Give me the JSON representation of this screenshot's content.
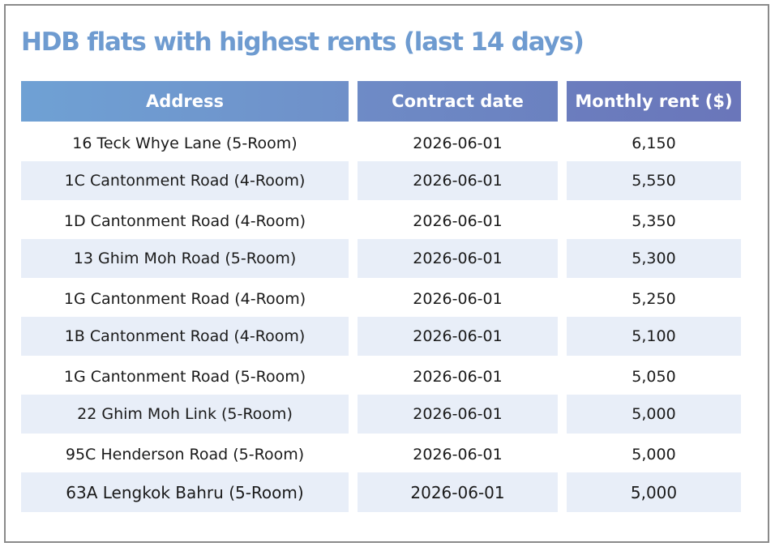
{
  "title": "HDB flats with highest rents (last 14 days)",
  "columns": [
    "Address",
    "Contract date",
    "Monthly rent ($)"
  ],
  "rows": [
    {
      "address": "16 Teck Whye Lane (5-Room)",
      "date": "2026-06-01",
      "rent": "6,150"
    },
    {
      "address": "1C Cantonment Road (4-Room)",
      "date": "2026-06-01",
      "rent": "5,550"
    },
    {
      "address": "1D Cantonment Road (4-Room)",
      "date": "2026-06-01",
      "rent": "5,350"
    },
    {
      "address": "13 Ghim Moh Road (5-Room)",
      "date": "2026-06-01",
      "rent": "5,300"
    },
    {
      "address": "1G Cantonment Road (4-Room)",
      "date": "2026-06-01",
      "rent": "5,250"
    },
    {
      "address": "1B Cantonment Road (4-Room)",
      "date": "2026-06-01",
      "rent": "5,100"
    },
    {
      "address": "1G Cantonment Road (5-Room)",
      "date": "2026-06-01",
      "rent": "5,050"
    },
    {
      "address": "22 Ghim Moh Link (5-Room)",
      "date": "2026-06-01",
      "rent": "5,000"
    },
    {
      "address": "95C Henderson Road (5-Room)",
      "date": "2026-06-01",
      "rent": "5,000"
    },
    {
      "address": "63A Lengkok Bahru (5-Room)",
      "date": "2026-06-01",
      "rent": "5,000"
    }
  ],
  "colors": {
    "title": "#6e9bd0",
    "header_start": "#6fa1d4",
    "header_end": "#6a76ba",
    "row_shade": "#e8eef8"
  }
}
